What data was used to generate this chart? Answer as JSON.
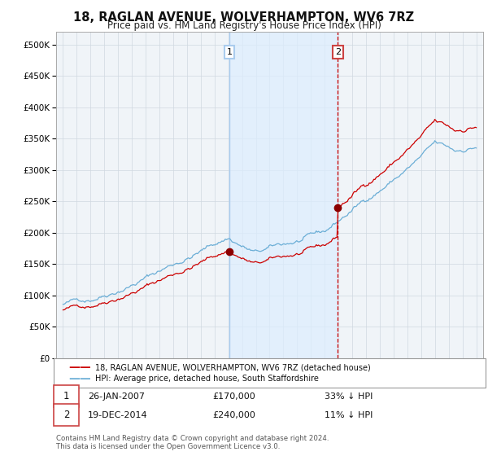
{
  "title": "18, RAGLAN AVENUE, WOLVERHAMPTON, WV6 7RZ",
  "subtitle": "Price paid vs. HM Land Registry's House Price Index (HPI)",
  "legend_line1": "18, RAGLAN AVENUE, WOLVERHAMPTON, WV6 7RZ (detached house)",
  "legend_line2": "HPI: Average price, detached house, South Staffordshire",
  "annotation1_label": "1",
  "annotation1_date": "26-JAN-2007",
  "annotation1_price": "£170,000",
  "annotation1_hpi": "33% ↓ HPI",
  "annotation1_year": 2007.07,
  "annotation1_value": 170000,
  "annotation2_label": "2",
  "annotation2_date": "19-DEC-2014",
  "annotation2_price": "£240,000",
  "annotation2_hpi": "11% ↓ HPI",
  "annotation2_year": 2014.96,
  "annotation2_value": 240000,
  "hpi_color": "#6baed6",
  "hpi_fill_color": "#ddeeff",
  "price_color": "#cc0000",
  "marker_color": "#8b0000",
  "vline1_color": "#aaccee",
  "vline2_color": "#cc0000",
  "background_color": "#ffffff",
  "plot_bg_color": "#f0f4f8",
  "grid_color": "#d0d8e0",
  "footer": "Contains HM Land Registry data © Crown copyright and database right 2024.\nThis data is licensed under the Open Government Licence v3.0.",
  "ylim": [
    0,
    520000
  ],
  "yticks": [
    0,
    50000,
    100000,
    150000,
    200000,
    250000,
    300000,
    350000,
    400000,
    450000,
    500000
  ],
  "xlim_start": 1994.5,
  "xlim_end": 2025.5
}
